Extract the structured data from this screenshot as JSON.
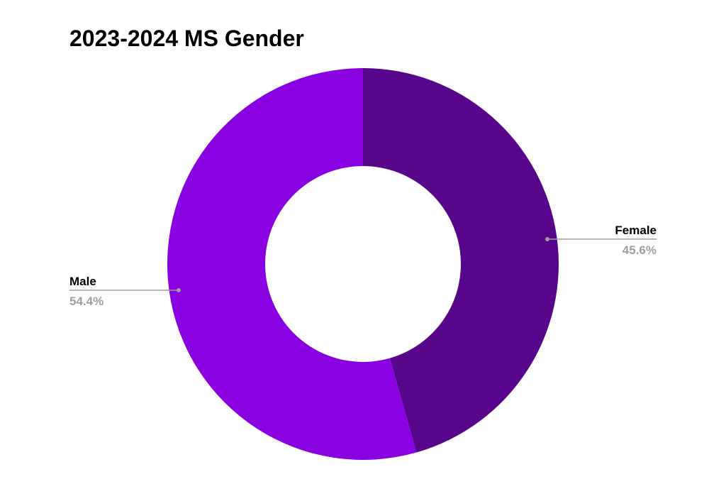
{
  "chart_data": {
    "type": "pie",
    "title": "2023-2024 MS Gender",
    "donut": true,
    "slices": [
      {
        "label": "Female",
        "value": 45.6,
        "display": "45.6%",
        "color": "#57068c",
        "legend_side": "right"
      },
      {
        "label": "Male",
        "value": 54.4,
        "display": "54.4%",
        "color": "#8900e1",
        "legend_side": "left"
      }
    ]
  }
}
